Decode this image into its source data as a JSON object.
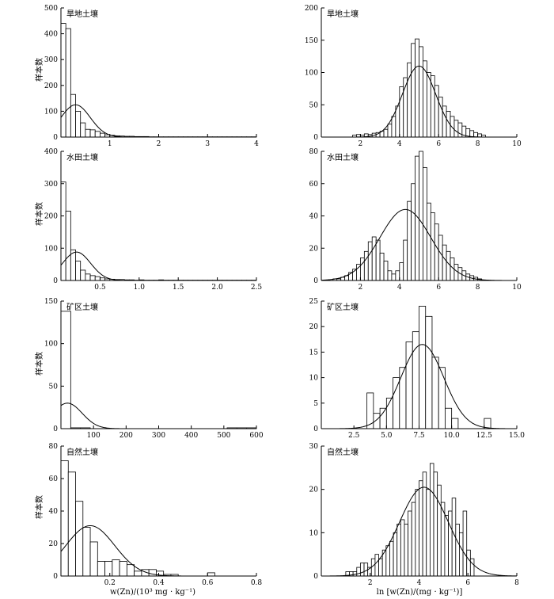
{
  "ylabel": "样本数",
  "xlabel_left": "w(Zn)/(10³ mg · kg⁻¹)",
  "xlabel_right": "ln [w(Zn)/(mg · kg⁻¹)]",
  "chart_data": [
    {
      "type": "bar",
      "title": "旱地土壤",
      "xlim": [
        0,
        4
      ],
      "ylim": [
        0,
        500
      ],
      "xticks": [
        1,
        2,
        3,
        4
      ],
      "xtick_labels": [
        "1",
        "2",
        "3",
        "4"
      ],
      "yticks": [
        0,
        100,
        200,
        300,
        400,
        500
      ],
      "ytick_labels": [
        "0",
        "100",
        "200",
        "300",
        "400",
        "500"
      ],
      "bin_start": 0,
      "bin_width": 0.1,
      "counts": [
        440,
        420,
        165,
        100,
        55,
        30,
        28,
        22,
        15,
        9,
        7,
        5,
        4,
        3,
        3,
        2,
        2,
        2,
        1,
        1,
        1,
        1,
        1,
        1,
        1,
        1,
        1,
        1,
        1,
        1,
        1,
        1,
        1,
        1,
        1,
        1,
        1,
        1,
        1,
        1
      ],
      "curve": {
        "type": "normal",
        "mean": 0.3,
        "sd": 0.3,
        "peak": 125
      }
    },
    {
      "type": "bar",
      "title": "旱地土壤",
      "xlim": [
        0,
        10
      ],
      "ylim": [
        0,
        200
      ],
      "xticks": [
        2,
        4,
        6,
        8,
        10
      ],
      "xtick_labels": [
        "2",
        "4",
        "6",
        "8",
        "10"
      ],
      "yticks": [
        0,
        50,
        100,
        150,
        200
      ],
      "ytick_labels": [
        "0",
        "50",
        "100",
        "150",
        "200"
      ],
      "bin_start": 1.6,
      "bin_width": 0.2,
      "counts": [
        3,
        4,
        3,
        5,
        4,
        6,
        7,
        9,
        12,
        20,
        32,
        48,
        78,
        92,
        115,
        145,
        152,
        140,
        118,
        100,
        95,
        80,
        62,
        48,
        40,
        32,
        26,
        22,
        17,
        13,
        10,
        7,
        5,
        3
      ],
      "curve": {
        "type": "normal",
        "mean": 5.0,
        "sd": 0.85,
        "peak": 110
      }
    },
    {
      "type": "bar",
      "title": "水田土壤",
      "xlim": [
        0,
        2.5
      ],
      "ylim": [
        0,
        400
      ],
      "xticks": [
        0.5,
        1.0,
        1.5,
        2.0,
        2.5
      ],
      "xtick_labels": [
        "0.5",
        "1.0",
        "1.5",
        "2.0",
        "2.5"
      ],
      "yticks": [
        0,
        100,
        200,
        300,
        400
      ],
      "ytick_labels": [
        "0",
        "100",
        "200",
        "300",
        "400"
      ],
      "bin_start": 0,
      "bin_width": 0.0625,
      "counts": [
        305,
        215,
        95,
        60,
        32,
        20,
        15,
        12,
        8,
        5,
        4,
        3,
        3,
        2,
        2,
        1,
        2,
        1,
        1,
        1,
        2,
        1,
        1,
        1,
        1,
        1,
        1,
        1,
        1,
        1,
        1,
        1,
        1,
        1,
        1,
        1,
        1,
        1,
        1,
        1
      ],
      "curve": {
        "type": "normal",
        "mean": 0.2,
        "sd": 0.18,
        "peak": 88
      }
    },
    {
      "type": "bar",
      "title": "水田土壤",
      "xlim": [
        0,
        10
      ],
      "ylim": [
        0,
        80
      ],
      "xticks": [
        2,
        4,
        6,
        8,
        10
      ],
      "xtick_labels": [
        "2",
        "4",
        "6",
        "8",
        "10"
      ],
      "yticks": [
        0,
        20,
        40,
        60,
        80
      ],
      "ytick_labels": [
        "0",
        "20",
        "40",
        "60",
        "80"
      ],
      "bin_start": 0.6,
      "bin_width": 0.2,
      "counts": [
        1,
        1,
        2,
        3,
        5,
        7,
        10,
        14,
        18,
        24,
        27,
        25,
        17,
        12,
        6,
        4,
        6,
        11,
        25,
        49,
        60,
        77,
        80,
        70,
        48,
        42,
        35,
        28,
        22,
        18,
        14,
        10,
        8,
        6,
        4,
        3,
        2,
        1
      ],
      "curve": {
        "type": "normal",
        "mean": 4.3,
        "sd": 1.3,
        "peak": 44
      }
    },
    {
      "type": "bar",
      "title": "矿区土壤",
      "xlim": [
        0,
        600
      ],
      "ylim": [
        0,
        150
      ],
      "xticks": [
        100,
        200,
        300,
        400,
        500,
        600
      ],
      "xtick_labels": [
        "100",
        "200",
        "300",
        "400",
        "500",
        "600"
      ],
      "yticks": [
        0,
        50,
        100,
        150
      ],
      "ytick_labels": [
        "0",
        "50",
        "100",
        "150"
      ],
      "bin_start": 0,
      "bin_width": 30,
      "counts": [
        138,
        1,
        1,
        0,
        0,
        0,
        0,
        0,
        0,
        0,
        0,
        0,
        0,
        0,
        0,
        0,
        0,
        1,
        1,
        1
      ],
      "curve": {
        "type": "normal",
        "mean": 20,
        "sd": 45,
        "peak": 30
      }
    },
    {
      "type": "bar",
      "title": "矿区土壤",
      "xlim": [
        0,
        15
      ],
      "ylim": [
        0,
        25
      ],
      "xticks": [
        2.5,
        5.0,
        7.5,
        10.0,
        12.5,
        15.0
      ],
      "xtick_labels": [
        "2.5",
        "5.0",
        "7.5",
        "10.0",
        "12.5",
        "15.0"
      ],
      "yticks": [
        0,
        5,
        10,
        15,
        20,
        25
      ],
      "ytick_labels": [
        "0",
        "5",
        "10",
        "15",
        "20",
        "25"
      ],
      "bin_start": 3.5,
      "bin_width": 0.5,
      "counts": [
        7,
        3,
        4,
        6,
        10,
        12,
        17,
        19,
        24,
        22,
        14,
        12,
        4,
        2,
        0,
        0,
        0,
        0,
        2
      ],
      "curve": {
        "type": "normal",
        "mean": 7.75,
        "sd": 1.65,
        "peak": 16.5
      }
    },
    {
      "type": "bar",
      "title": "自然土壤",
      "xlim": [
        0,
        0.8
      ],
      "ylim": [
        0,
        80
      ],
      "xticks": [
        0.2,
        0.4,
        0.6,
        0.8
      ],
      "xtick_labels": [
        "0.2",
        "0.4",
        "0.6",
        "0.8"
      ],
      "yticks": [
        0,
        20,
        40,
        60,
        80
      ],
      "ytick_labels": [
        "0",
        "20",
        "40",
        "60",
        "80"
      ],
      "bin_start": 0,
      "bin_width": 0.03,
      "counts": [
        71,
        64,
        46,
        30,
        21,
        9,
        9,
        10,
        9,
        7,
        3,
        4,
        4,
        3,
        1,
        1,
        0,
        0,
        0,
        0,
        2
      ],
      "curve": {
        "type": "normal",
        "mean": 0.12,
        "sd": 0.1,
        "peak": 31
      }
    },
    {
      "type": "bar",
      "title": "自然土壤",
      "xlim": [
        0,
        8
      ],
      "ylim": [
        0,
        30
      ],
      "xticks": [
        2,
        4,
        6,
        8
      ],
      "xtick_labels": [
        "2",
        "4",
        "6",
        "8"
      ],
      "yticks": [
        0,
        10,
        20,
        30
      ],
      "ytick_labels": [
        "0",
        "10",
        "20",
        "30"
      ],
      "bin_start": 1.0,
      "bin_width": 0.15,
      "counts": [
        1,
        1,
        1,
        2,
        3,
        3,
        2,
        4,
        5,
        4,
        6,
        7,
        8,
        10,
        12,
        13,
        12,
        15,
        17,
        20,
        22,
        24,
        20,
        26,
        24,
        21,
        17,
        14,
        15,
        18,
        12,
        10,
        15,
        6,
        4
      ],
      "curve": {
        "type": "normal",
        "mean": 4.2,
        "sd": 1.0,
        "peak": 20.5
      }
    }
  ]
}
